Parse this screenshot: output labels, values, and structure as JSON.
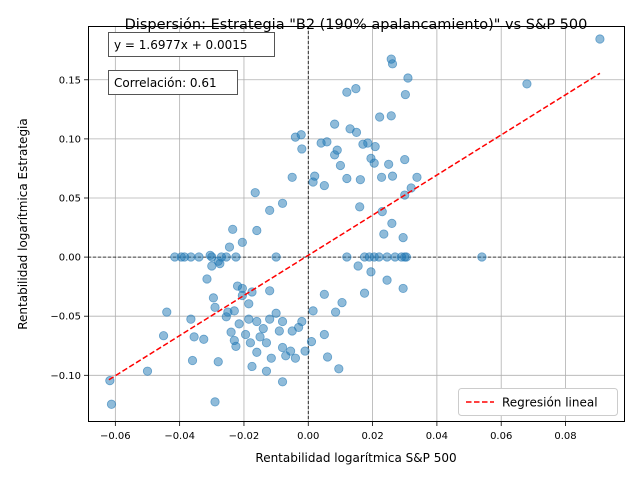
{
  "chart_data": {
    "type": "scatter",
    "title": "Dispersión: Estrategia \"B2 (190% apalancamiento)\" vs S&P 500",
    "xlabel": "Rentabilidad logarítmica S&P 500",
    "ylabel": "Rentabilidad logarítmica Estrategia",
    "xlim": [
      -0.0685,
      0.0985
    ],
    "ylim": [
      -0.1395,
      0.1955
    ],
    "xticks": [
      -0.06,
      -0.04,
      -0.02,
      0.0,
      0.02,
      0.04,
      0.06,
      0.08
    ],
    "xtick_labels": [
      "−0.06",
      "−0.04",
      "−0.02",
      "0.00",
      "0.02",
      "0.04",
      "0.06",
      "0.08"
    ],
    "yticks": [
      -0.1,
      -0.05,
      0.0,
      0.05,
      0.1,
      0.15
    ],
    "ytick_labels": [
      "−0.10",
      "−0.05",
      "0.00",
      "0.05",
      "0.10",
      "0.15"
    ],
    "grid": true,
    "legend_position": "lower-right",
    "legend_label": "Regresión lineal",
    "annotations": {
      "equation": "y = 1.6977x + 0.0015",
      "correlation": "Correlación: 0.61"
    },
    "regression": {
      "slope": 1.6977,
      "intercept": 0.0015,
      "x_range": [
        -0.062,
        0.0907
      ]
    },
    "reference_lines": {
      "x": 0.0,
      "y": 0.0,
      "style": "dashed",
      "color": "#000000"
    },
    "colors": {
      "points": "#1f77b4",
      "regression": "#ff0000"
    },
    "series": [
      {
        "points": [
          [
            0.0907,
            0.1845
          ],
          [
            0.0258,
            0.1675
          ],
          [
            0.0262,
            0.1635
          ],
          [
            0.031,
            0.1515
          ],
          [
            0.068,
            0.1465
          ],
          [
            0.0148,
            0.1425
          ],
          [
            0.012,
            0.1395
          ],
          [
            0.0302,
            0.1375
          ],
          [
            0.0222,
            0.1185
          ],
          [
            0.0258,
            0.1195
          ],
          [
            0.0082,
            0.1125
          ],
          [
            0.013,
            0.1085
          ],
          [
            0.015,
            0.1055
          ],
          [
            -0.004,
            0.1015
          ],
          [
            -0.0022,
            0.1035
          ],
          [
            0.004,
            0.0965
          ],
          [
            0.0058,
            0.0975
          ],
          [
            0.0185,
            0.0965
          ],
          [
            0.0208,
            0.0935
          ],
          [
            0.017,
            0.0955
          ],
          [
            -0.002,
            0.0915
          ],
          [
            0.009,
            0.0905
          ],
          [
            0.0082,
            0.0865
          ],
          [
            0.0195,
            0.0835
          ],
          [
            0.0205,
            0.0795
          ],
          [
            0.03,
            0.0825
          ],
          [
            0.025,
            0.0785
          ],
          [
            0.01,
            0.0775
          ],
          [
            0.0228,
            0.0675
          ],
          [
            0.0262,
            0.0685
          ],
          [
            0.0338,
            0.0675
          ],
          [
            0.0162,
            0.0655
          ],
          [
            0.012,
            0.0665
          ],
          [
            -0.005,
            0.0675
          ],
          [
            0.002,
            0.0685
          ],
          [
            0.032,
            0.0585
          ],
          [
            0.03,
            0.0525
          ],
          [
            -0.0165,
            0.0545
          ],
          [
            0.0015,
            0.0635
          ],
          [
            0.005,
            0.0605
          ],
          [
            -0.008,
            0.0455
          ],
          [
            -0.012,
            0.0395
          ],
          [
            0.016,
            0.0425
          ],
          [
            0.023,
            0.0385
          ],
          [
            0.026,
            0.0285
          ],
          [
            0.0295,
            0.0165
          ],
          [
            0.0235,
            0.0195
          ],
          [
            -0.016,
            0.0225
          ],
          [
            -0.0235,
            0.0235
          ],
          [
            -0.0205,
            0.0125
          ],
          [
            -0.0245,
            0.0085
          ],
          [
            -0.0305,
            0.0015
          ],
          [
            -0.028,
            -0.0035
          ],
          [
            -0.0275,
            -0.0055
          ],
          [
            -0.03,
            -0.0075
          ],
          [
            -0.0315,
            -0.0185
          ],
          [
            -0.0205,
            -0.0265
          ],
          [
            -0.0175,
            -0.0295
          ],
          [
            -0.012,
            -0.0285
          ],
          [
            -0.0295,
            -0.0345
          ],
          [
            -0.022,
            -0.0245
          ],
          [
            -0.0205,
            -0.0325
          ],
          [
            -0.0185,
            -0.0395
          ],
          [
            -0.023,
            -0.0455
          ],
          [
            -0.0255,
            -0.0505
          ],
          [
            -0.0215,
            -0.0565
          ],
          [
            -0.0185,
            -0.0525
          ],
          [
            -0.016,
            -0.0545
          ],
          [
            -0.014,
            -0.0605
          ],
          [
            -0.012,
            -0.0525
          ],
          [
            -0.01,
            -0.0475
          ],
          [
            -0.008,
            -0.0545
          ],
          [
            -0.005,
            -0.0625
          ],
          [
            -0.002,
            -0.0545
          ],
          [
            0.0015,
            -0.0455
          ],
          [
            0.005,
            -0.0315
          ],
          [
            0.0085,
            -0.0465
          ],
          [
            0.0105,
            -0.0385
          ],
          [
            0.0175,
            -0.0305
          ],
          [
            0.0245,
            -0.0195
          ],
          [
            0.0295,
            -0.0265
          ],
          [
            -0.029,
            -0.0425
          ],
          [
            -0.025,
            -0.0465
          ],
          [
            -0.024,
            -0.0635
          ],
          [
            -0.023,
            -0.0705
          ],
          [
            -0.0225,
            -0.0755
          ],
          [
            -0.0195,
            -0.0655
          ],
          [
            -0.018,
            -0.0725
          ],
          [
            -0.016,
            -0.0805
          ],
          [
            -0.015,
            -0.0675
          ],
          [
            -0.013,
            -0.0725
          ],
          [
            -0.0115,
            -0.0855
          ],
          [
            -0.009,
            -0.0625
          ],
          [
            -0.008,
            -0.0765
          ],
          [
            -0.007,
            -0.0835
          ],
          [
            -0.0055,
            -0.0795
          ],
          [
            -0.004,
            -0.0855
          ],
          [
            -0.003,
            -0.0595
          ],
          [
            -0.001,
            -0.0795
          ],
          [
            0.001,
            -0.0715
          ],
          [
            0.005,
            -0.0655
          ],
          [
            0.006,
            -0.0845
          ],
          [
            0.0095,
            -0.0945
          ],
          [
            -0.013,
            -0.0965
          ],
          [
            -0.008,
            -0.1055
          ],
          [
            -0.0175,
            -0.0925
          ],
          [
            -0.0325,
            -0.0695
          ],
          [
            -0.0355,
            -0.0675
          ],
          [
            -0.0365,
            -0.0525
          ],
          [
            -0.036,
            -0.0875
          ],
          [
            -0.028,
            -0.0885
          ],
          [
            -0.029,
            -0.1225
          ],
          [
            -0.05,
            -0.0965
          ],
          [
            -0.045,
            -0.0665
          ],
          [
            -0.044,
            -0.0465
          ],
          [
            -0.0617,
            -0.1045
          ],
          [
            -0.0612,
            -0.1245
          ],
          [
            -0.0415,
            0.0001
          ],
          [
            -0.0395,
            0.0001
          ],
          [
            -0.0385,
            0.0001
          ],
          [
            -0.0365,
            0.0001
          ],
          [
            -0.034,
            0.0001
          ],
          [
            -0.03,
            0.0001
          ],
          [
            -0.027,
            0.0001
          ],
          [
            -0.0255,
            0.0001
          ],
          [
            -0.0225,
            0.0001
          ],
          [
            0.0175,
            0.0001
          ],
          [
            0.019,
            0.0001
          ],
          [
            0.0205,
            0.0001
          ],
          [
            0.022,
            0.0001
          ],
          [
            0.0245,
            0.0001
          ],
          [
            0.027,
            0.0001
          ],
          [
            0.029,
            0.0001
          ],
          [
            0.03,
            0.0001
          ],
          [
            0.0305,
            0.0001
          ],
          [
            0.054,
            0.0001
          ],
          [
            0.012,
            0.0001
          ],
          [
            -0.01,
            0.0001
          ],
          [
            0.0155,
            -0.0075
          ],
          [
            0.0195,
            -0.0125
          ]
        ]
      }
    ]
  }
}
